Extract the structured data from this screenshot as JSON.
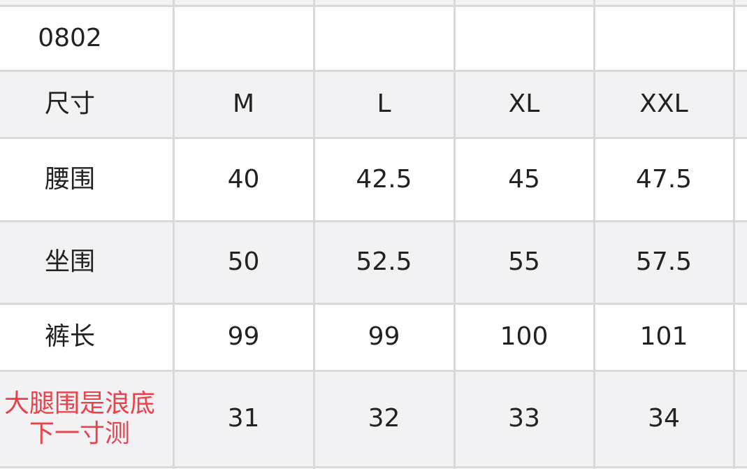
{
  "table": {
    "rows": [
      [
        "0802"
      ],
      [
        "尺寸",
        "M",
        "L",
        "XL",
        "XXL"
      ],
      [
        "腰围",
        "40",
        "42.5",
        "45",
        "47.5"
      ],
      [
        "坐围",
        "50",
        "52.5",
        "55",
        "57.5"
      ],
      [
        "裤长",
        "99",
        "99",
        "100",
        "101"
      ],
      [
        "大腿围是浪底下一寸测",
        "31",
        "32",
        "33",
        "34"
      ]
    ]
  }
}
